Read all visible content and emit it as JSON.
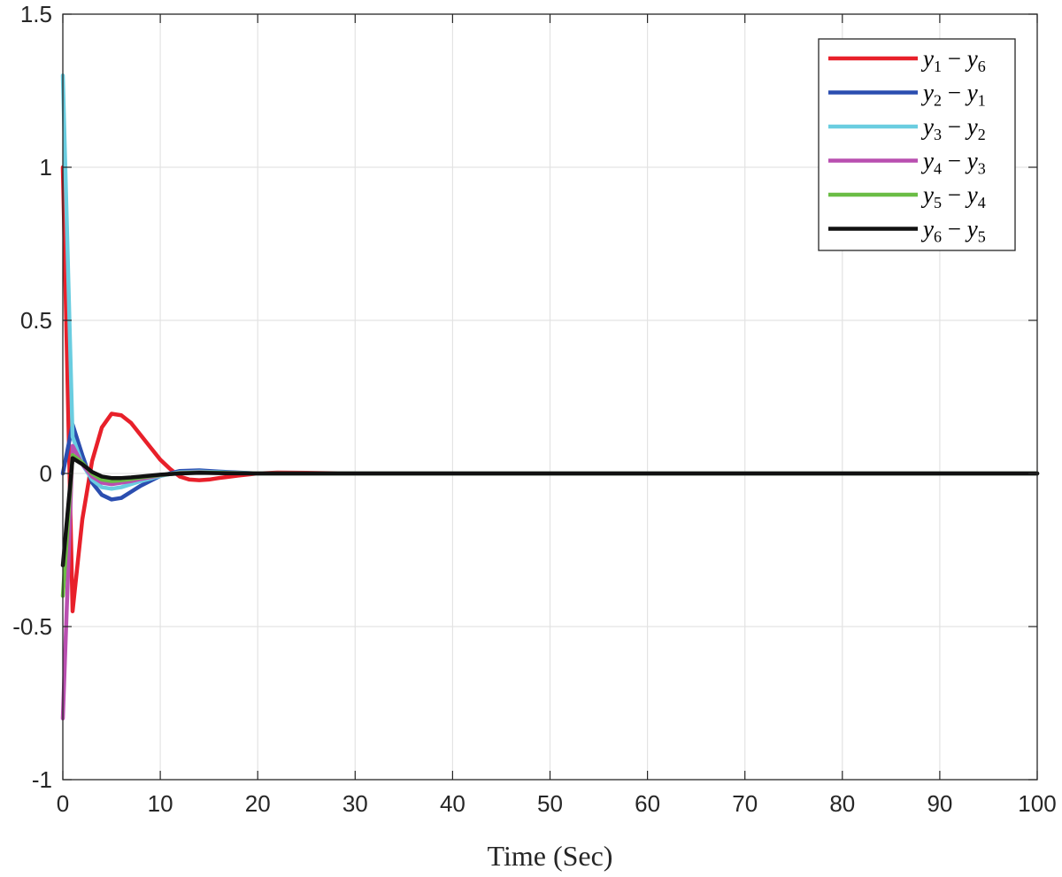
{
  "chart_data": {
    "type": "line",
    "xlabel": "Time (Sec)",
    "ylabel": "",
    "xlim": [
      0,
      100
    ],
    "ylim": [
      -1,
      1.5
    ],
    "x_ticks": [
      0,
      10,
      20,
      30,
      40,
      50,
      60,
      70,
      80,
      90,
      100
    ],
    "y_ticks": [
      -1,
      -0.5,
      0,
      0.5,
      1,
      1.5
    ],
    "x_tick_labels": [
      "0",
      "10",
      "20",
      "30",
      "40",
      "50",
      "60",
      "70",
      "80",
      "90",
      "100"
    ],
    "y_tick_labels": [
      "-1",
      "-0.5",
      "0",
      "0.5",
      "1",
      "1.5"
    ],
    "grid": true,
    "legend_position": "top-right",
    "series": [
      {
        "name": "y1 − y6",
        "label_parts": [
          "y",
          "1",
          " − ",
          "y",
          "6"
        ],
        "color": "#e8202a",
        "x": [
          0,
          1,
          2,
          3,
          4,
          5,
          6,
          7,
          8,
          9,
          10,
          11,
          12,
          13,
          14,
          15,
          16,
          18,
          20,
          22,
          25,
          30,
          100
        ],
        "y": [
          1.0,
          -0.45,
          -0.15,
          0.04,
          0.15,
          0.195,
          0.19,
          0.165,
          0.125,
          0.085,
          0.045,
          0.015,
          -0.01,
          -0.02,
          -0.022,
          -0.02,
          -0.015,
          -0.007,
          0.0,
          0.003,
          0.002,
          0.0,
          0.0
        ]
      },
      {
        "name": "y2 − y1",
        "label_parts": [
          "y",
          "2",
          " − ",
          "y",
          "1"
        ],
        "color": "#2b4eb0",
        "x": [
          0,
          1,
          2,
          3,
          4,
          5,
          6,
          7,
          8,
          10,
          12,
          14,
          16,
          20,
          30,
          100
        ],
        "y": [
          0.0,
          0.16,
          0.06,
          -0.03,
          -0.07,
          -0.085,
          -0.08,
          -0.06,
          -0.04,
          -0.008,
          0.008,
          0.01,
          0.006,
          0.0,
          0.0,
          0.0
        ]
      },
      {
        "name": "y3 − y2",
        "label_parts": [
          "y",
          "3",
          " − ",
          "y",
          "2"
        ],
        "color": "#6acde0",
        "x": [
          0,
          1,
          2,
          3,
          4,
          5,
          6,
          7,
          8,
          10,
          12,
          14,
          16,
          20,
          30,
          100
        ],
        "y": [
          1.3,
          0.12,
          0.03,
          -0.02,
          -0.045,
          -0.05,
          -0.045,
          -0.035,
          -0.025,
          -0.008,
          0.004,
          0.006,
          0.004,
          0.0,
          0.0,
          0.0
        ]
      },
      {
        "name": "y4 − y3",
        "label_parts": [
          "y",
          "4",
          " − ",
          "y",
          "3"
        ],
        "color": "#b94fb0",
        "x": [
          0,
          1,
          2,
          3,
          4,
          5,
          6,
          7,
          8,
          10,
          12,
          14,
          16,
          20,
          30,
          100
        ],
        "y": [
          -0.8,
          0.09,
          0.03,
          -0.01,
          -0.03,
          -0.035,
          -0.03,
          -0.025,
          -0.018,
          -0.006,
          0.002,
          0.004,
          0.002,
          0.0,
          0.0,
          0.0
        ]
      },
      {
        "name": "y5 − y4",
        "label_parts": [
          "y",
          "5",
          " − ",
          "y",
          "4"
        ],
        "color": "#6abd45",
        "x": [
          0,
          1,
          2,
          3,
          4,
          5,
          6,
          7,
          8,
          10,
          12,
          14,
          16,
          20,
          30,
          100
        ],
        "y": [
          -0.4,
          0.06,
          0.035,
          0.0,
          -0.02,
          -0.025,
          -0.022,
          -0.018,
          -0.013,
          -0.005,
          0.001,
          0.003,
          0.002,
          0.0,
          0.0,
          0.0
        ]
      },
      {
        "name": "y6 − y5",
        "label_parts": [
          "y",
          "6",
          " − ",
          "y",
          "5"
        ],
        "color": "#111111",
        "x": [
          0,
          1,
          2,
          3,
          4,
          5,
          6,
          7,
          8,
          10,
          12,
          14,
          16,
          20,
          30,
          100
        ],
        "y": [
          -0.3,
          0.05,
          0.03,
          0.005,
          -0.01,
          -0.015,
          -0.015,
          -0.013,
          -0.01,
          -0.004,
          0.0,
          0.002,
          0.001,
          0.0,
          0.0,
          0.0
        ]
      }
    ]
  }
}
